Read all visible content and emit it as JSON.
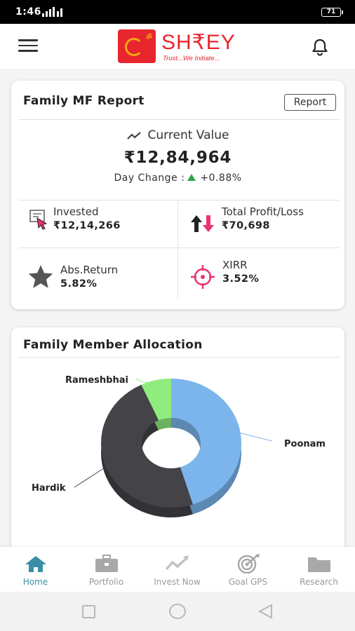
{
  "status": {
    "time": "1:46",
    "battery": "71"
  },
  "header": {
    "brand_name": "SH₹EY",
    "brand_tagline": "Trust...We Initiate..."
  },
  "mf_report": {
    "title": "Family MF Report",
    "report_button": "Report",
    "current_value_label": "Current Value",
    "current_value": "₹12,84,964",
    "day_change_label": "Day Change :",
    "day_change_value": "+0.88%",
    "invested_label": "Invested",
    "invested_value": "₹12,14,266",
    "profit_label": "Total Profit/Loss",
    "profit_value": "₹70,698",
    "abs_return_label": "Abs.Return",
    "abs_return_value": "5.82%",
    "xirr_label": "XIRR",
    "xirr_value": "3.52%"
  },
  "allocation": {
    "title": "Family Member Allocation",
    "chart_data": {
      "type": "pie",
      "categories": [
        "Poonam",
        "Hardik",
        "Rameshbhai"
      ],
      "values": [
        45,
        48,
        7
      ],
      "colors": [
        "#7cb5ec",
        "#434348",
        "#90ed7d"
      ],
      "donut": true
    }
  },
  "bottom_nav": [
    {
      "label": "Home",
      "icon": "home-icon",
      "active": true
    },
    {
      "label": "Portfolio",
      "icon": "briefcase-icon",
      "active": false
    },
    {
      "label": "Invest Now",
      "icon": "trend-icon",
      "active": false
    },
    {
      "label": "Goal GPS",
      "icon": "target-icon",
      "active": false
    },
    {
      "label": "Research",
      "icon": "folder-icon",
      "active": false
    }
  ],
  "colors": {
    "accent": "#e8262d",
    "nav_active": "#3a8ea5",
    "nav_inactive": "#9a9a9a",
    "positive": "#2ea44f",
    "pink": "#e8336b"
  }
}
